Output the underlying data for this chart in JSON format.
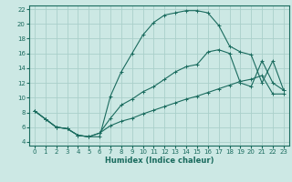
{
  "xlabel": "Humidex (Indice chaleur)",
  "xlim": [
    -0.5,
    23.5
  ],
  "ylim": [
    3.5,
    22.5
  ],
  "xticks": [
    0,
    1,
    2,
    3,
    4,
    5,
    6,
    7,
    8,
    9,
    10,
    11,
    12,
    13,
    14,
    15,
    16,
    17,
    18,
    19,
    20,
    21,
    22,
    23
  ],
  "yticks": [
    4,
    6,
    8,
    10,
    12,
    14,
    16,
    18,
    20,
    22
  ],
  "bg_color": "#cce8e4",
  "line_color": "#1a6b5e",
  "grid_color": "#aacfca",
  "line1_x": [
    0,
    1,
    2,
    3,
    4,
    5,
    6,
    7,
    8,
    9,
    10,
    11,
    12,
    13,
    14,
    15,
    16,
    17,
    18,
    19,
    20,
    21,
    22,
    23
  ],
  "line1_y": [
    8.2,
    7.1,
    6.0,
    5.8,
    4.9,
    4.7,
    4.7,
    10.2,
    13.5,
    16.0,
    18.5,
    20.2,
    21.2,
    21.5,
    21.8,
    21.8,
    21.5,
    19.8,
    17.0,
    16.2,
    15.8,
    12.0,
    15.0,
    11.0
  ],
  "line2_x": [
    0,
    1,
    2,
    3,
    4,
    5,
    6,
    7,
    8,
    9,
    10,
    11,
    12,
    13,
    14,
    15,
    16,
    17,
    18,
    19,
    20,
    21,
    22,
    23
  ],
  "line2_y": [
    8.2,
    7.1,
    6.0,
    5.8,
    4.9,
    4.7,
    5.2,
    7.2,
    9.0,
    9.8,
    10.8,
    11.5,
    12.5,
    13.5,
    14.2,
    14.5,
    16.2,
    16.5,
    16.0,
    12.0,
    11.5,
    15.0,
    12.0,
    11.0
  ],
  "line3_x": [
    0,
    1,
    2,
    3,
    4,
    5,
    6,
    7,
    8,
    9,
    10,
    11,
    12,
    13,
    14,
    15,
    16,
    17,
    18,
    19,
    20,
    21,
    22,
    23
  ],
  "line3_y": [
    8.2,
    7.1,
    6.0,
    5.8,
    4.9,
    4.7,
    5.2,
    6.2,
    6.8,
    7.2,
    7.8,
    8.3,
    8.8,
    9.3,
    9.8,
    10.2,
    10.7,
    11.2,
    11.7,
    12.2,
    12.5,
    13.0,
    10.5,
    10.5
  ]
}
